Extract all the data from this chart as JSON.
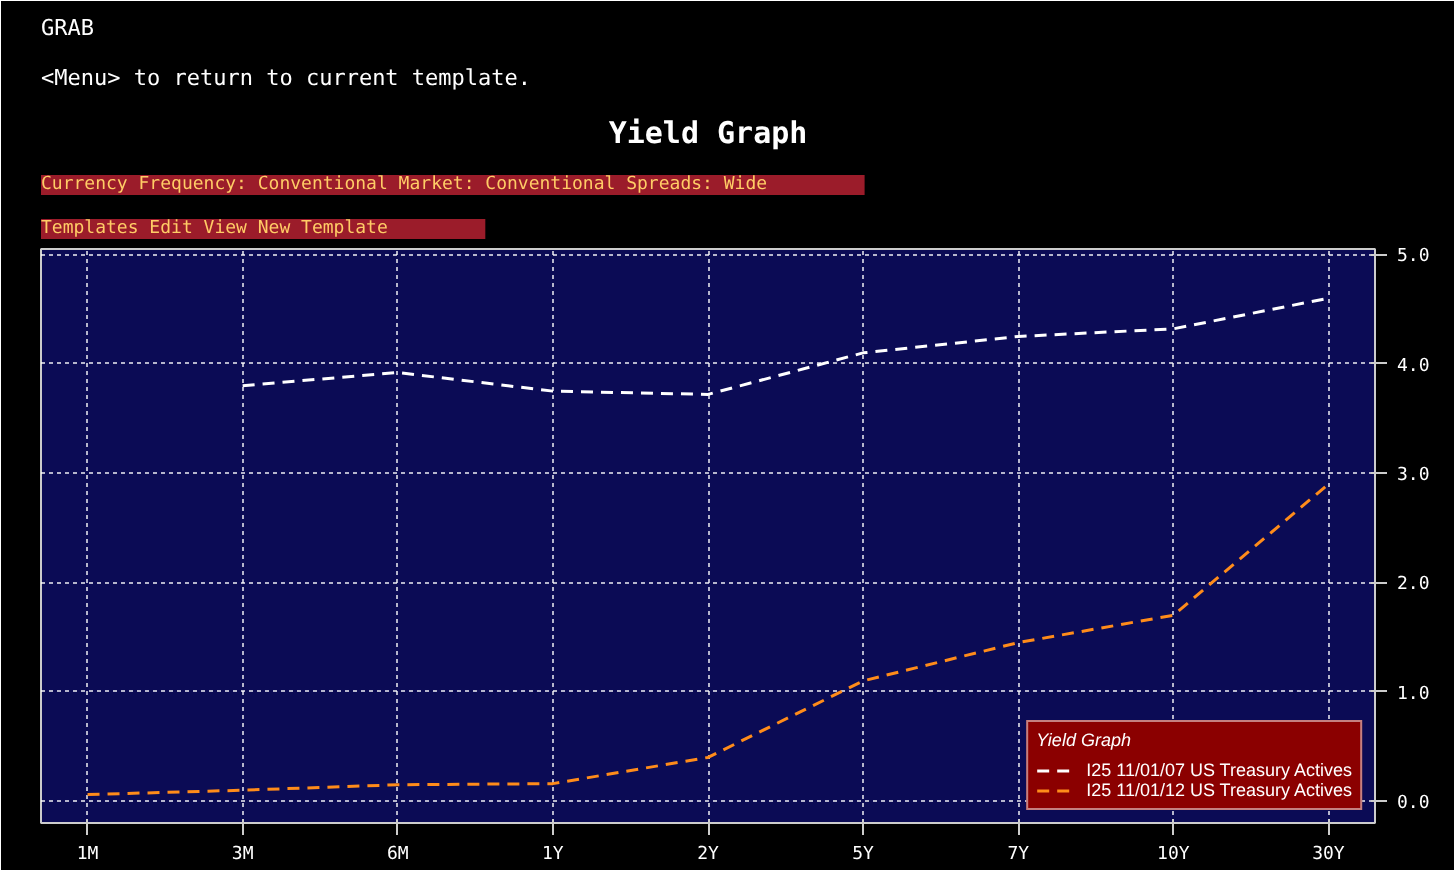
{
  "chart_data": {
    "type": "line",
    "title": "Yield Graph",
    "annotations": [
      "GRAB",
      "<Menu> to return to current template.",
      "Templates    Edit    View    New Template",
      "Currency    Frequency: Conventional    Market: Conventional    Spreads: Wide"
    ],
    "categories": [
      "1M",
      "3M",
      "6M",
      "1Y",
      "2Y",
      "5Y",
      "7Y",
      "10Y",
      "30Y"
    ],
    "series": [
      {
        "name": "I25 11/01/07 US Treasury Actives",
        "color": "#ffffff",
        "values": [
          null,
          3.8,
          3.92,
          3.75,
          3.72,
          4.1,
          4.25,
          4.32,
          4.6
        ]
      },
      {
        "name": "I25 11/01/12 US Treasury Actives",
        "color": "#ff8c1a",
        "values": [
          0.06,
          0.1,
          0.15,
          0.16,
          0.4,
          1.1,
          1.45,
          1.7,
          2.9
        ]
      }
    ],
    "legend_title": "Yield Graph",
    "legend": "bottom right",
    "ylim": [
      -0.2,
      5.05
    ],
    "yticks": [
      {
        "value": 0,
        "label": "0.0"
      },
      {
        "value": 1,
        "label": "1.0"
      },
      {
        "value": 2,
        "label": "2.0"
      },
      {
        "value": 3,
        "label": "3.0"
      },
      {
        "value": 4,
        "label": "4.0"
      },
      {
        "value": 5,
        "label": "5.0"
      }
    ],
    "grid": true,
    "line_style": "dashed"
  }
}
